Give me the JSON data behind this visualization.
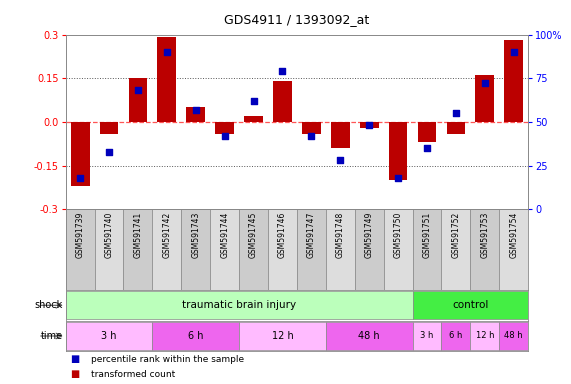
{
  "title": "GDS4911 / 1393092_at",
  "samples": [
    "GSM591739",
    "GSM591740",
    "GSM591741",
    "GSM591742",
    "GSM591743",
    "GSM591744",
    "GSM591745",
    "GSM591746",
    "GSM591747",
    "GSM591748",
    "GSM591749",
    "GSM591750",
    "GSM591751",
    "GSM591752",
    "GSM591753",
    "GSM591754"
  ],
  "bar_values": [
    -0.22,
    -0.04,
    0.15,
    0.29,
    0.05,
    -0.04,
    0.02,
    0.14,
    -0.04,
    -0.09,
    -0.02,
    -0.2,
    -0.07,
    -0.04,
    0.16,
    0.28
  ],
  "dot_values": [
    18,
    33,
    68,
    90,
    57,
    42,
    62,
    79,
    42,
    28,
    48,
    18,
    35,
    55,
    72,
    90
  ],
  "shock_groups": [
    {
      "label": "traumatic brain injury",
      "start": 0,
      "end": 11,
      "color": "#bbffbb"
    },
    {
      "label": "control",
      "start": 12,
      "end": 15,
      "color": "#44ee44"
    }
  ],
  "time_groups": [
    {
      "label": "3 h",
      "start": 0,
      "end": 2,
      "color": "#ffbbff"
    },
    {
      "label": "6 h",
      "start": 3,
      "end": 5,
      "color": "#ee66ee"
    },
    {
      "label": "12 h",
      "start": 6,
      "end": 8,
      "color": "#ffbbff"
    },
    {
      "label": "48 h",
      "start": 9,
      "end": 11,
      "color": "#ee66ee"
    },
    {
      "label": "3 h",
      "start": 12,
      "end": 12,
      "color": "#ffbbff"
    },
    {
      "label": "6 h",
      "start": 13,
      "end": 13,
      "color": "#ee66ee"
    },
    {
      "label": "12 h",
      "start": 14,
      "end": 14,
      "color": "#ffbbff"
    },
    {
      "label": "48 h",
      "start": 15,
      "end": 15,
      "color": "#ee66ee"
    }
  ],
  "ylim_left": [
    -0.3,
    0.3
  ],
  "ylim_right": [
    0,
    100
  ],
  "yticks_left": [
    -0.3,
    -0.15,
    0.0,
    0.15,
    0.3
  ],
  "yticks_right": [
    0,
    25,
    50,
    75,
    100
  ],
  "ytick_labels_right": [
    "0",
    "25",
    "50",
    "75",
    "100%"
  ],
  "bar_color": "#bb0000",
  "dot_color": "#0000bb",
  "hline_color": "#ff5555",
  "dotted_color": "#555555",
  "legend_bar_label": "transformed count",
  "legend_dot_label": "percentile rank within the sample",
  "shock_label": "shock",
  "time_label": "time",
  "background_color": "#ffffff",
  "plot_bg_color": "#ffffff",
  "cell_colors": [
    "#cccccc",
    "#dddddd"
  ]
}
